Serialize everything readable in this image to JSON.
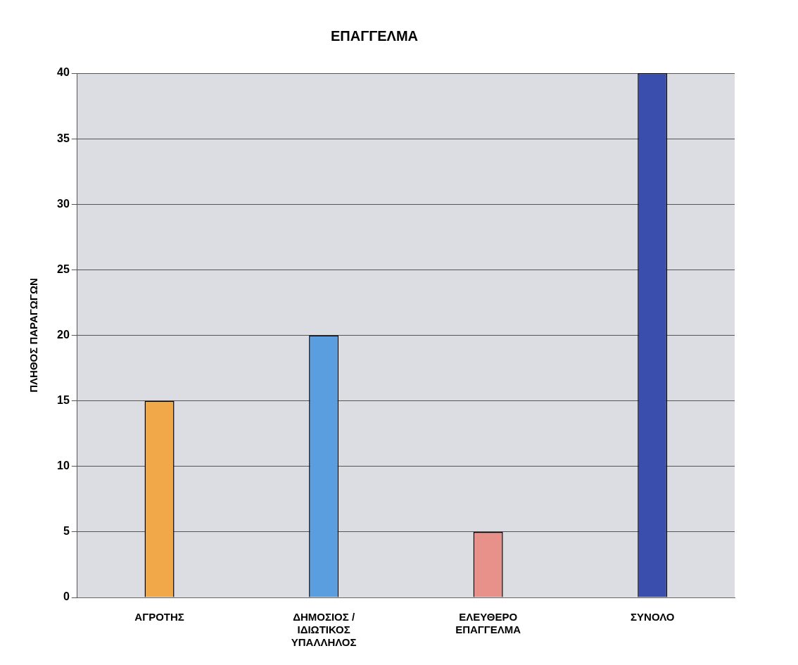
{
  "chart_data": {
    "type": "bar",
    "title": "ΕΠΑΓΓΕΛΜΑ",
    "ylabel": "ΠΛΗΘΟΣ ΠΑΡΑΓΩΓΩΝ",
    "categories": [
      "ΑΓΡΟΤΗΣ",
      "ΔΗΜΟΣΙΟΣ / ΙΔΙΩΤΙΚΟΣ ΥΠΑΛΛΗΛΟΣ",
      "ΕΛΕΥΘΕΡΟ ΕΠΑΓΓΕΛΜΑ",
      "ΣΥΝΟΛΟ"
    ],
    "values": [
      15,
      20,
      5,
      40
    ],
    "colors": [
      "#f0a848",
      "#5a9ee0",
      "#e8908a",
      "#3a4eae"
    ],
    "ylim": [
      0,
      40
    ],
    "yticks": [
      0,
      5,
      10,
      15,
      20,
      25,
      30,
      35,
      40
    ],
    "grid": "y",
    "legend": false
  }
}
